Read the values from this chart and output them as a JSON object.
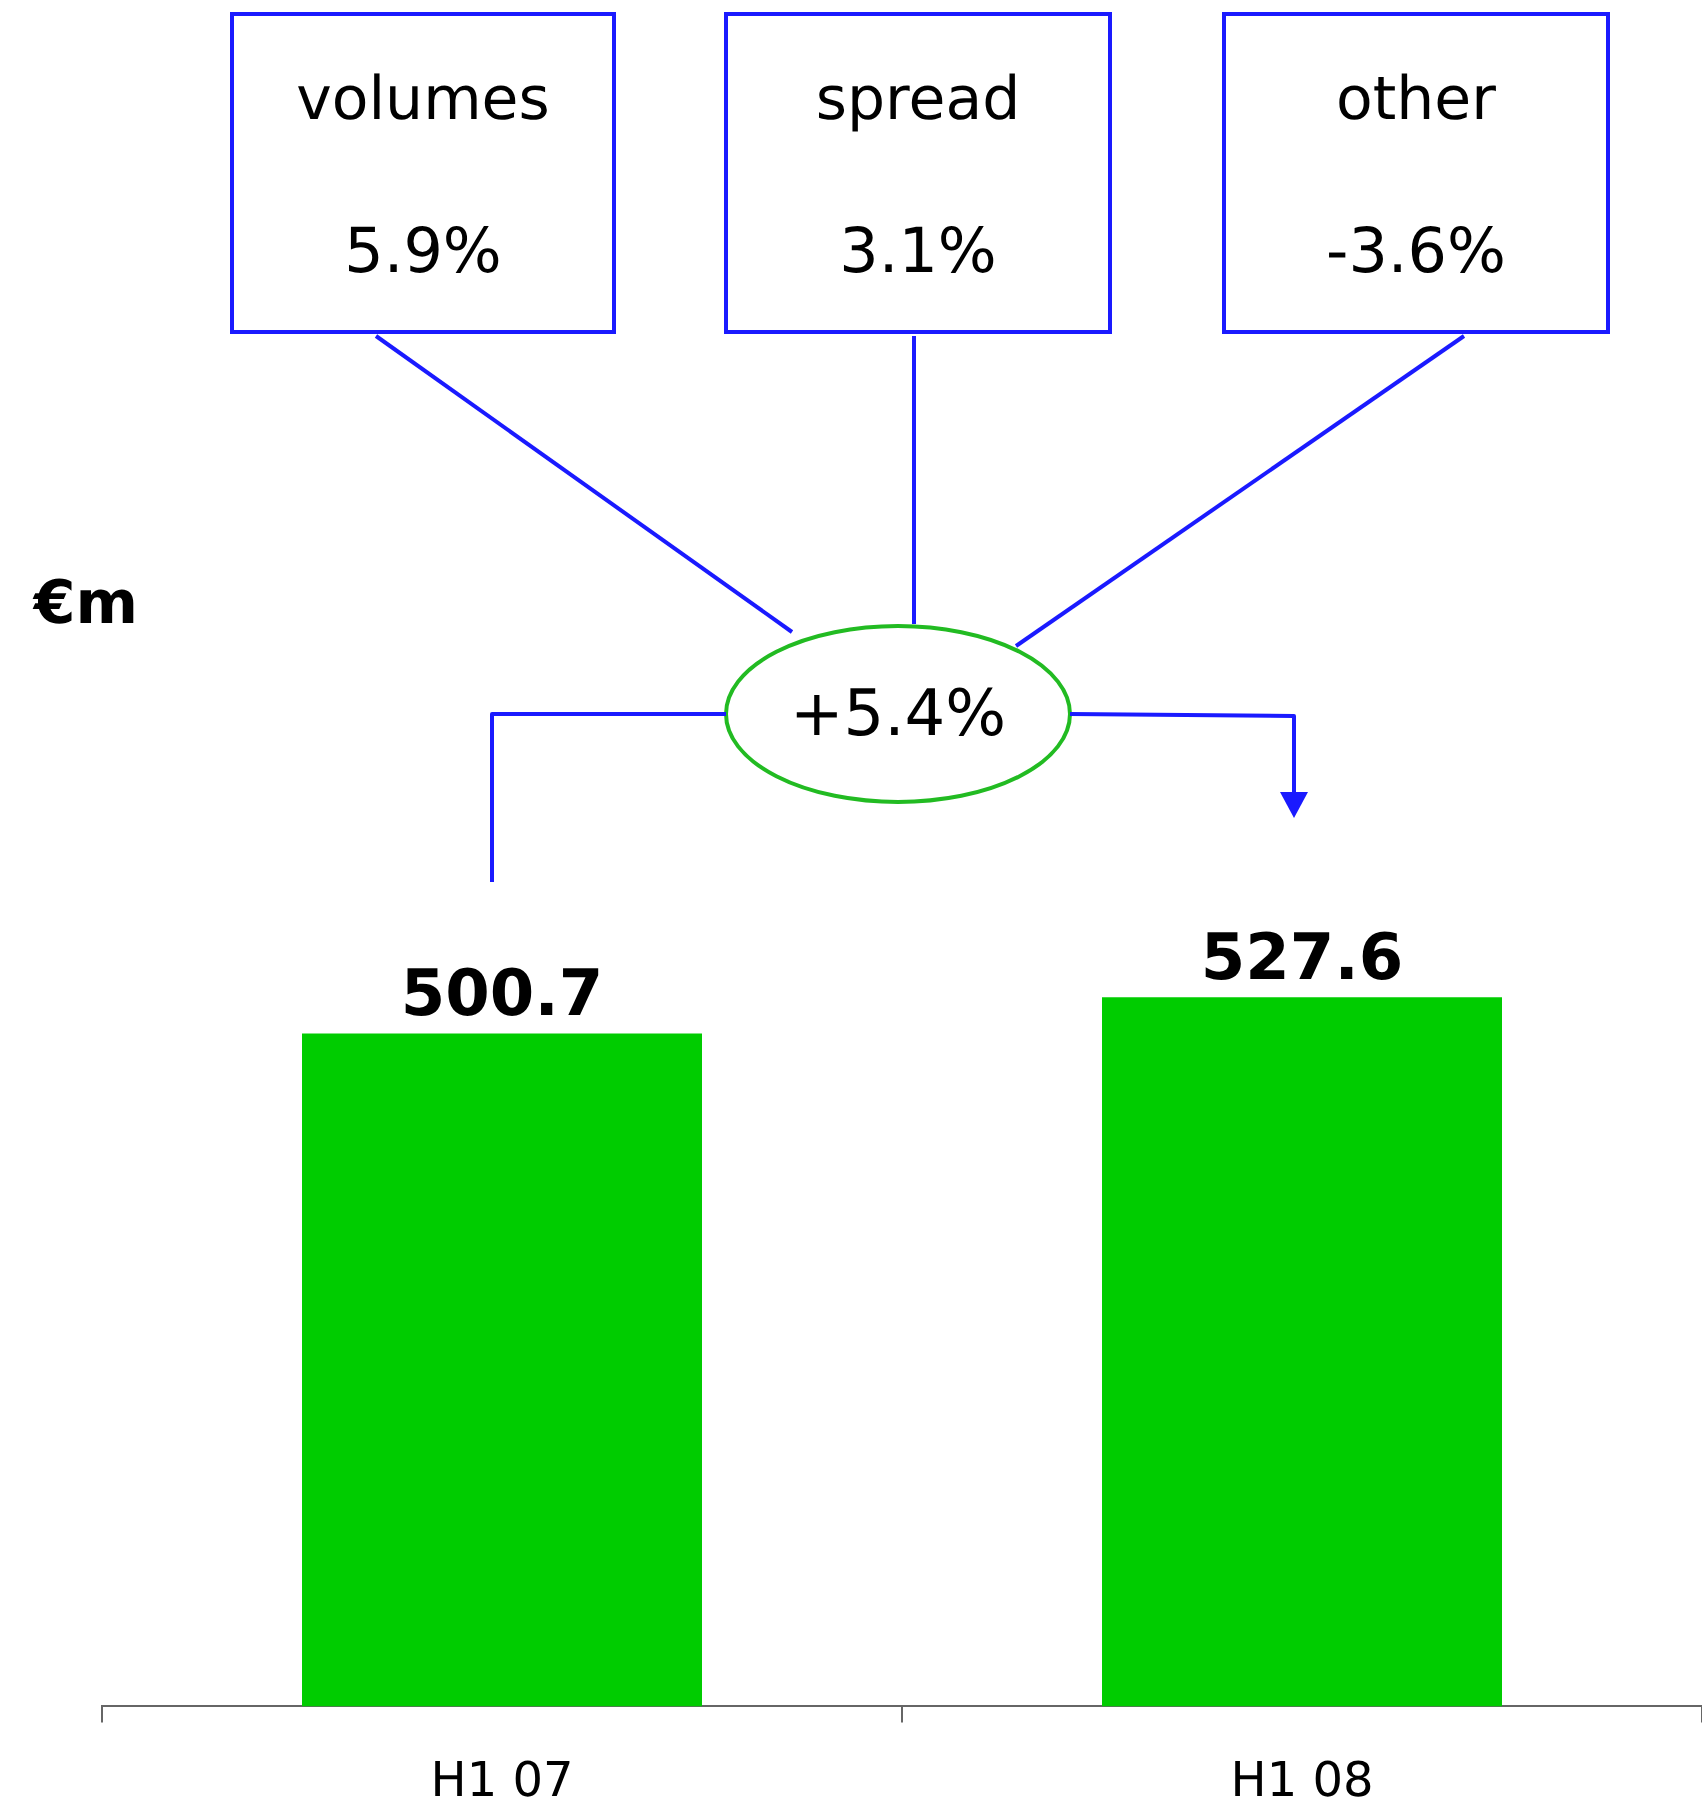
{
  "chart_data": {
    "type": "bar",
    "categories": [
      "H1 07",
      "H1 08"
    ],
    "values": [
      500.7,
      527.6
    ],
    "color": "#00cc00",
    "data_labels": true,
    "tick_labels": "x",
    "annotations": [
      "volumes",
      "5.9%",
      "spread",
      "3.1%",
      "other",
      "-3.6%",
      "+5.4%",
      "€m"
    ]
  }
}
